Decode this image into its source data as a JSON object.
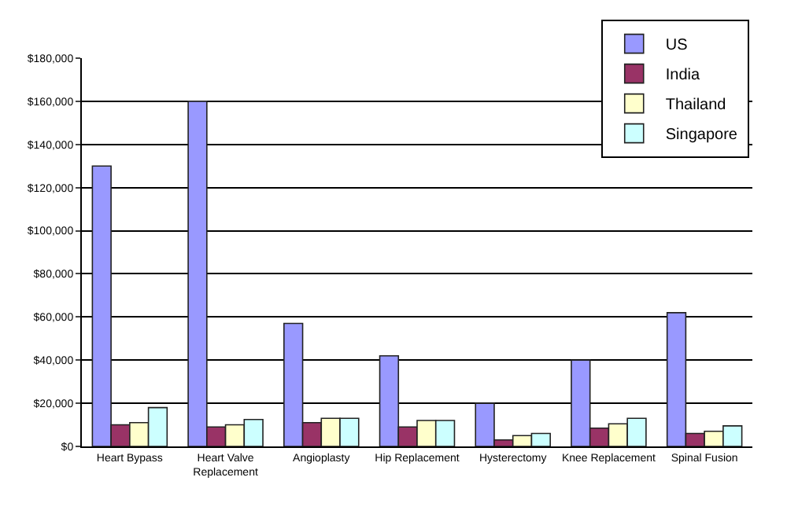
{
  "chart_data": {
    "type": "bar",
    "categories": [
      "Heart Bypass",
      "Heart Valve Replacement",
      "Angioplasty",
      "Hip Replacement",
      "Hysterectomy",
      "Knee Replacement",
      "Spinal Fusion"
    ],
    "series": [
      {
        "name": "US",
        "color": "#9999ff",
        "values": [
          130000,
          160000,
          57000,
          42000,
          20000,
          40000,
          62000
        ]
      },
      {
        "name": "India",
        "color": "#993366",
        "values": [
          10000,
          9000,
          11000,
          9000,
          3000,
          8500,
          6000
        ]
      },
      {
        "name": "Thailand",
        "color": "#ffffcc",
        "values": [
          11000,
          10000,
          13000,
          12000,
          5000,
          10500,
          7000
        ]
      },
      {
        "name": "Singapore",
        "color": "#ccffff",
        "values": [
          18000,
          12500,
          13000,
          12000,
          6000,
          13000,
          9500
        ]
      }
    ],
    "ylim": [
      0,
      180000
    ],
    "yticks": [
      {
        "value": 0,
        "label": "$0"
      },
      {
        "value": 20000,
        "label": "$20,000"
      },
      {
        "value": 40000,
        "label": "$40,000"
      },
      {
        "value": 60000,
        "label": "$60,000"
      },
      {
        "value": 80000,
        "label": "$80,000"
      },
      {
        "value": 100000,
        "label": "$100,000"
      },
      {
        "value": 120000,
        "label": "$120,000"
      },
      {
        "value": 140000,
        "label": "$140,000"
      },
      {
        "value": 160000,
        "label": "$160,000"
      },
      {
        "value": 180000,
        "label": "$180,000"
      }
    ],
    "grid": "y",
    "legend": "top right"
  }
}
